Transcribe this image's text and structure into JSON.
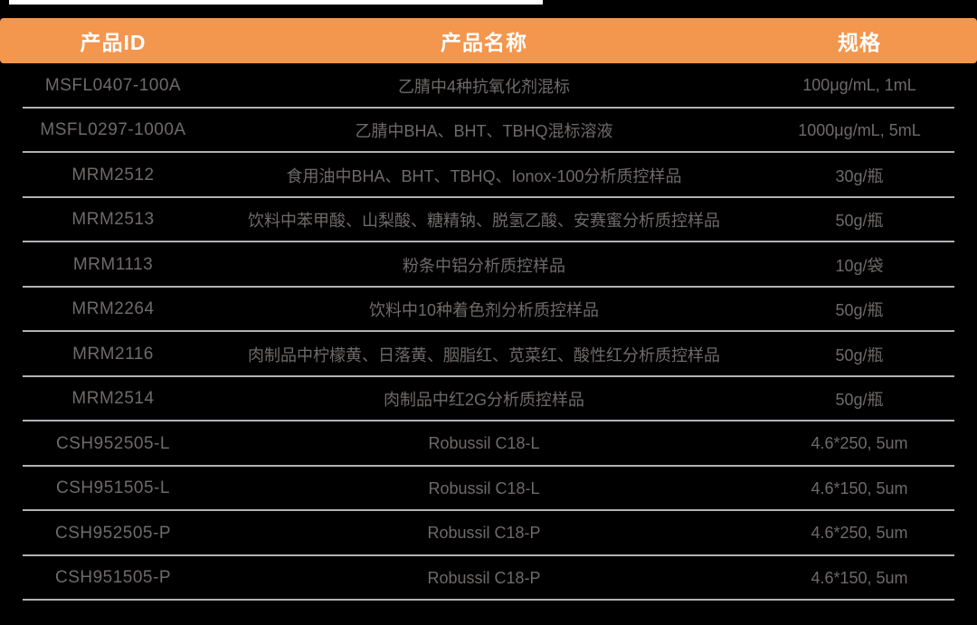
{
  "page": {
    "background_color": "#000000",
    "accent_color": "#f3964e",
    "row_text_color": "#6f6a6a",
    "divider_color": "#b2b2b6",
    "header_text_color": "#ffffff"
  },
  "table": {
    "columns": [
      {
        "key": "id",
        "label": "产品ID"
      },
      {
        "key": "name",
        "label": "产品名称"
      },
      {
        "key": "spec",
        "label": "规格"
      }
    ],
    "rows": [
      {
        "id": "MSFL0407-100A",
        "name": "乙腈中4种抗氧化剂混标",
        "spec": "100μg/mL, 1mL"
      },
      {
        "id": "MSFL0297-1000A",
        "name": "乙腈中BHA、BHT、TBHQ混标溶液",
        "spec": "1000μg/mL, 5mL"
      },
      {
        "id": "MRM2512",
        "name": "食用油中BHA、BHT、TBHQ、Ionox-100分析质控样品",
        "spec": "30g/瓶"
      },
      {
        "id": "MRM2513",
        "name": "饮料中苯甲酸、山梨酸、糖精钠、脱氢乙酸、安赛蜜分析质控样品",
        "spec": "50g/瓶"
      },
      {
        "id": "MRM1113",
        "name": "粉条中铝分析质控样品",
        "spec": "10g/袋"
      },
      {
        "id": "MRM2264",
        "name": "饮料中10种着色剂分析质控样品",
        "spec": "50g/瓶"
      },
      {
        "id": "MRM2116",
        "name": "肉制品中柠檬黄、日落黄、胭脂红、苋菜红、酸性红分析质控样品",
        "spec": "50g/瓶"
      },
      {
        "id": "MRM2514",
        "name": "肉制品中红2G分析质控样品",
        "spec": "50g/瓶"
      },
      {
        "id": "CSH952505-L",
        "name": "Robussil C18-L",
        "spec": "4.6*250, 5um"
      },
      {
        "id": "CSH951505-L",
        "name": "Robussil C18-L",
        "spec": "4.6*150, 5um"
      },
      {
        "id": "CSH952505-P",
        "name": "Robussil C18-P",
        "spec": "4.6*250, 5um"
      },
      {
        "id": "CSH951505-P",
        "name": "Robussil C18-P",
        "spec": "4.6*150, 5um"
      }
    ]
  }
}
